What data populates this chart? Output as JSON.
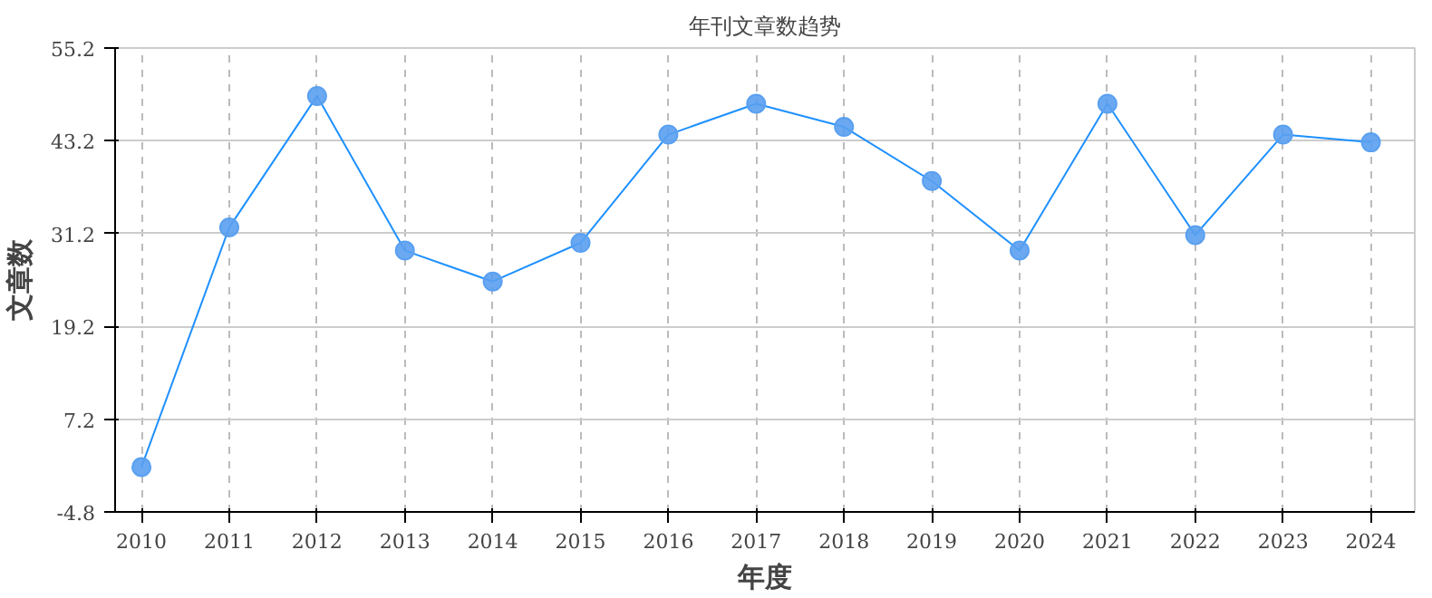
{
  "chart_data": {
    "type": "line",
    "title": "年刊文章数趋势",
    "xlabel": "年度",
    "ylabel": "文章数",
    "categories": [
      "2010",
      "2011",
      "2012",
      "2013",
      "2014",
      "2015",
      "2016",
      "2017",
      "2018",
      "2019",
      "2020",
      "2021",
      "2022",
      "2023",
      "2024"
    ],
    "series": [
      {
        "color": "#1e90ff",
        "values": [
          1,
          32,
          49,
          29,
          25,
          30,
          44,
          48,
          45,
          38,
          29,
          48,
          31,
          44,
          43
        ]
      }
    ],
    "ylim": [
      -4.8,
      55.2
    ],
    "yticks": [
      -4.8,
      7.2,
      19.2,
      31.2,
      43.2,
      55.2
    ],
    "grid": true,
    "marker": "circle",
    "line_style": "solid"
  }
}
